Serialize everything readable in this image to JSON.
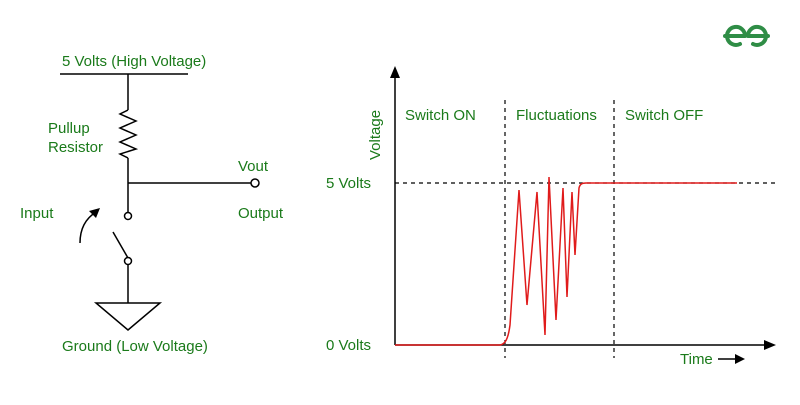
{
  "logo": {
    "name": "gfg-logo-icon",
    "color": "#2f8d46"
  },
  "circuit": {
    "supply_label": "5 Volts (High Voltage)",
    "resistor_label_line1": "Pullup",
    "resistor_label_line2": "Resistor",
    "vout_label": "Vout",
    "input_label": "Input",
    "output_label": "Output",
    "ground_label": "Ground (Low Voltage)"
  },
  "graph": {
    "ylabel": "Voltage",
    "xlabel": "Time",
    "high_label": "5 Volts",
    "low_label": "0 Volts",
    "regions": [
      "Switch ON",
      "Fluctuations",
      "Switch OFF"
    ]
  },
  "colors": {
    "label_text": "#1a7a1a",
    "signal": "#e01b1b",
    "lines": "#000000"
  }
}
